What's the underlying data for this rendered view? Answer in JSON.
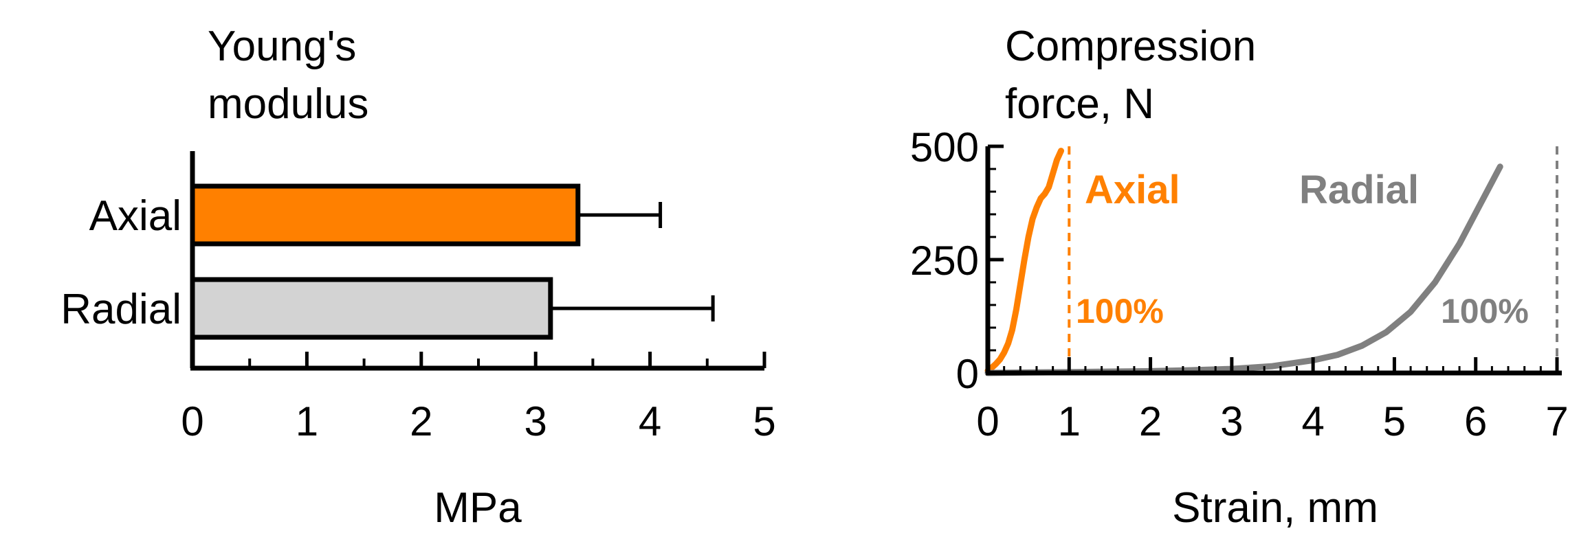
{
  "chart_data": [
    {
      "type": "bar",
      "orientation": "horizontal",
      "title": "Young's modulus",
      "title_lines": [
        "Young's",
        "modulus"
      ],
      "xlabel": "MPa",
      "ylabel": "",
      "categories": [
        "Axial",
        "Radial"
      ],
      "values": [
        3.37,
        3.13
      ],
      "error": [
        0.72,
        1.42
      ],
      "colors": [
        "#ff8000",
        "#d3d3d3"
      ],
      "xlim": [
        0,
        5
      ],
      "xticks": [
        "0",
        "1",
        "2",
        "3",
        "4",
        "5"
      ],
      "grid": false
    },
    {
      "type": "line",
      "title": "Compression force, N",
      "title_lines": [
        "Compression",
        "force, N"
      ],
      "xlabel": "Strain, mm",
      "ylabel": "",
      "xlim": [
        0,
        7
      ],
      "ylim": [
        0,
        500
      ],
      "xticks": [
        "0",
        "1",
        "2",
        "3",
        "4",
        "5",
        "6",
        "7"
      ],
      "yticks": [
        "0",
        "250",
        "500"
      ],
      "grid": false,
      "series": [
        {
          "name": "Axial",
          "color": "#ff8000",
          "x": [
            0,
            0.05,
            0.1,
            0.15,
            0.2,
            0.25,
            0.3,
            0.35,
            0.4,
            0.45,
            0.5,
            0.55,
            0.6,
            0.65,
            0.7,
            0.75,
            0.8,
            0.85,
            0.9
          ],
          "y": [
            5,
            12,
            20,
            30,
            45,
            65,
            95,
            140,
            195,
            250,
            300,
            340,
            365,
            385,
            395,
            410,
            440,
            470,
            490
          ],
          "limit_x": 1,
          "limit_label": "100%"
        },
        {
          "name": "Radial",
          "color": "#808080",
          "x": [
            0,
            0.5,
            1,
            1.5,
            2,
            2.5,
            3,
            3.5,
            4,
            4.3,
            4.6,
            4.9,
            5.2,
            5.5,
            5.8,
            6.05,
            6.3
          ],
          "y": [
            0,
            1,
            2,
            3,
            4,
            6,
            9,
            15,
            28,
            40,
            60,
            90,
            135,
            200,
            285,
            370,
            455
          ],
          "limit_x": 7,
          "limit_label": "100%"
        }
      ]
    }
  ]
}
